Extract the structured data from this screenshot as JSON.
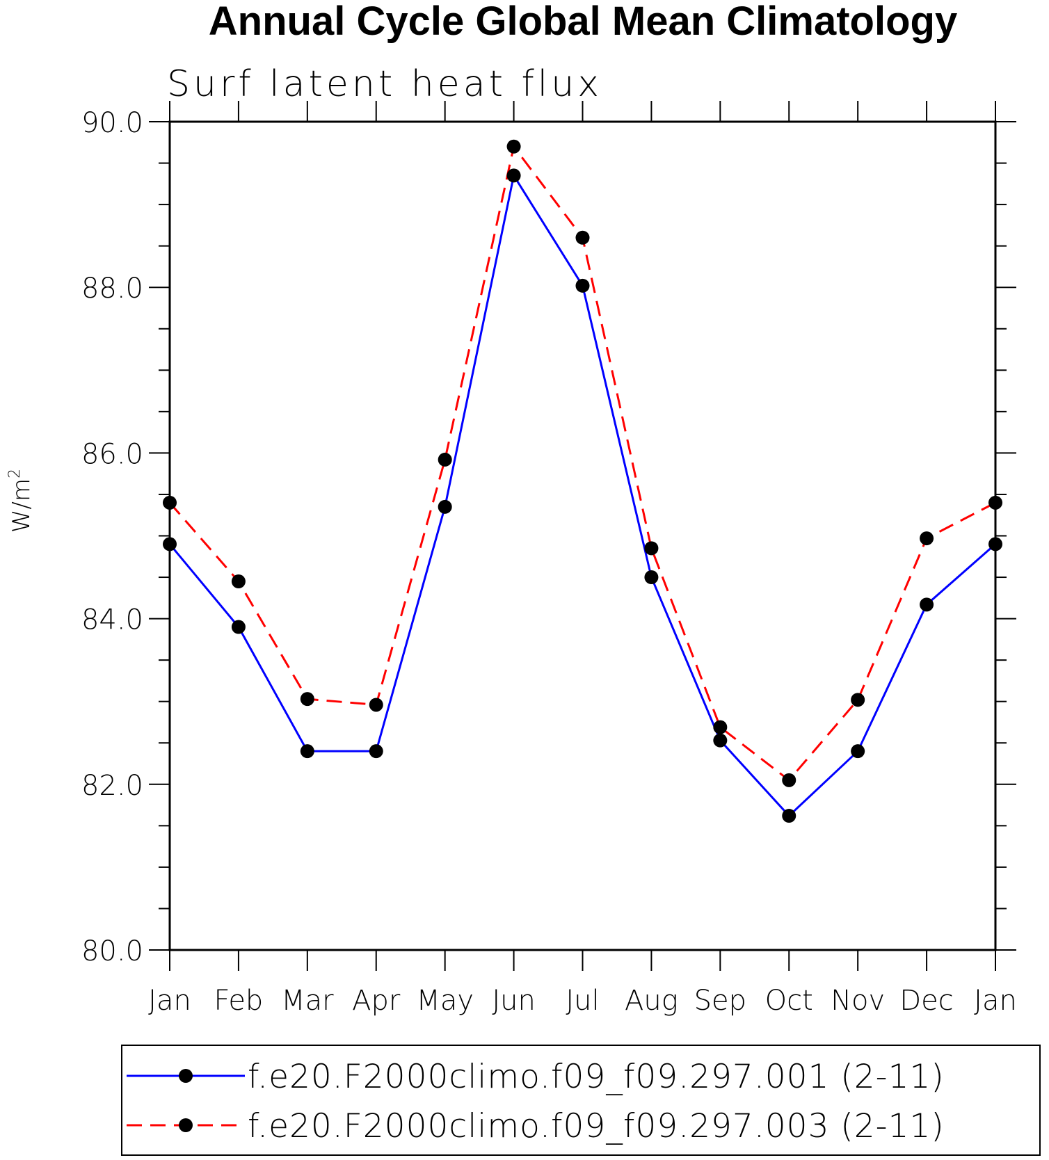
{
  "chart_data": {
    "type": "line",
    "title": "Annual Cycle Global Mean Climatology",
    "subtitle": "Surf latent heat flux",
    "ylabel": "W/m",
    "ylabel_superscript": "2",
    "ylim": [
      80.0,
      90.0
    ],
    "y_ticks": [
      "80.0",
      "82.0",
      "84.0",
      "86.0",
      "88.0",
      "90.0"
    ],
    "y_tick_values": [
      80,
      82,
      84,
      86,
      88,
      90
    ],
    "categories": [
      "Jan",
      "Feb",
      "Mar",
      "Apr",
      "May",
      "Jun",
      "Jul",
      "Aug",
      "Sep",
      "Oct",
      "Nov",
      "Dec",
      "Jan"
    ],
    "grid": false,
    "legend_placement": "bottom",
    "series": [
      {
        "name": "f.e20.F2000climo.f09_f09.297.001 (2-11)",
        "color": "#0000ff",
        "line_style": "solid",
        "marker": "filled-circle",
        "values": [
          84.9,
          83.9,
          82.4,
          82.4,
          85.35,
          89.35,
          88.02,
          84.5,
          82.53,
          81.62,
          82.4,
          84.17,
          84.9
        ]
      },
      {
        "name": "f.e20.F2000climo.f09_f09.297.003 (2-11)",
        "color": "#ff0000",
        "line_style": "dashed",
        "marker": "filled-circle",
        "values": [
          85.4,
          84.45,
          83.03,
          82.96,
          85.92,
          89.7,
          88.6,
          84.85,
          82.69,
          82.05,
          83.02,
          84.97,
          85.4
        ]
      }
    ]
  }
}
